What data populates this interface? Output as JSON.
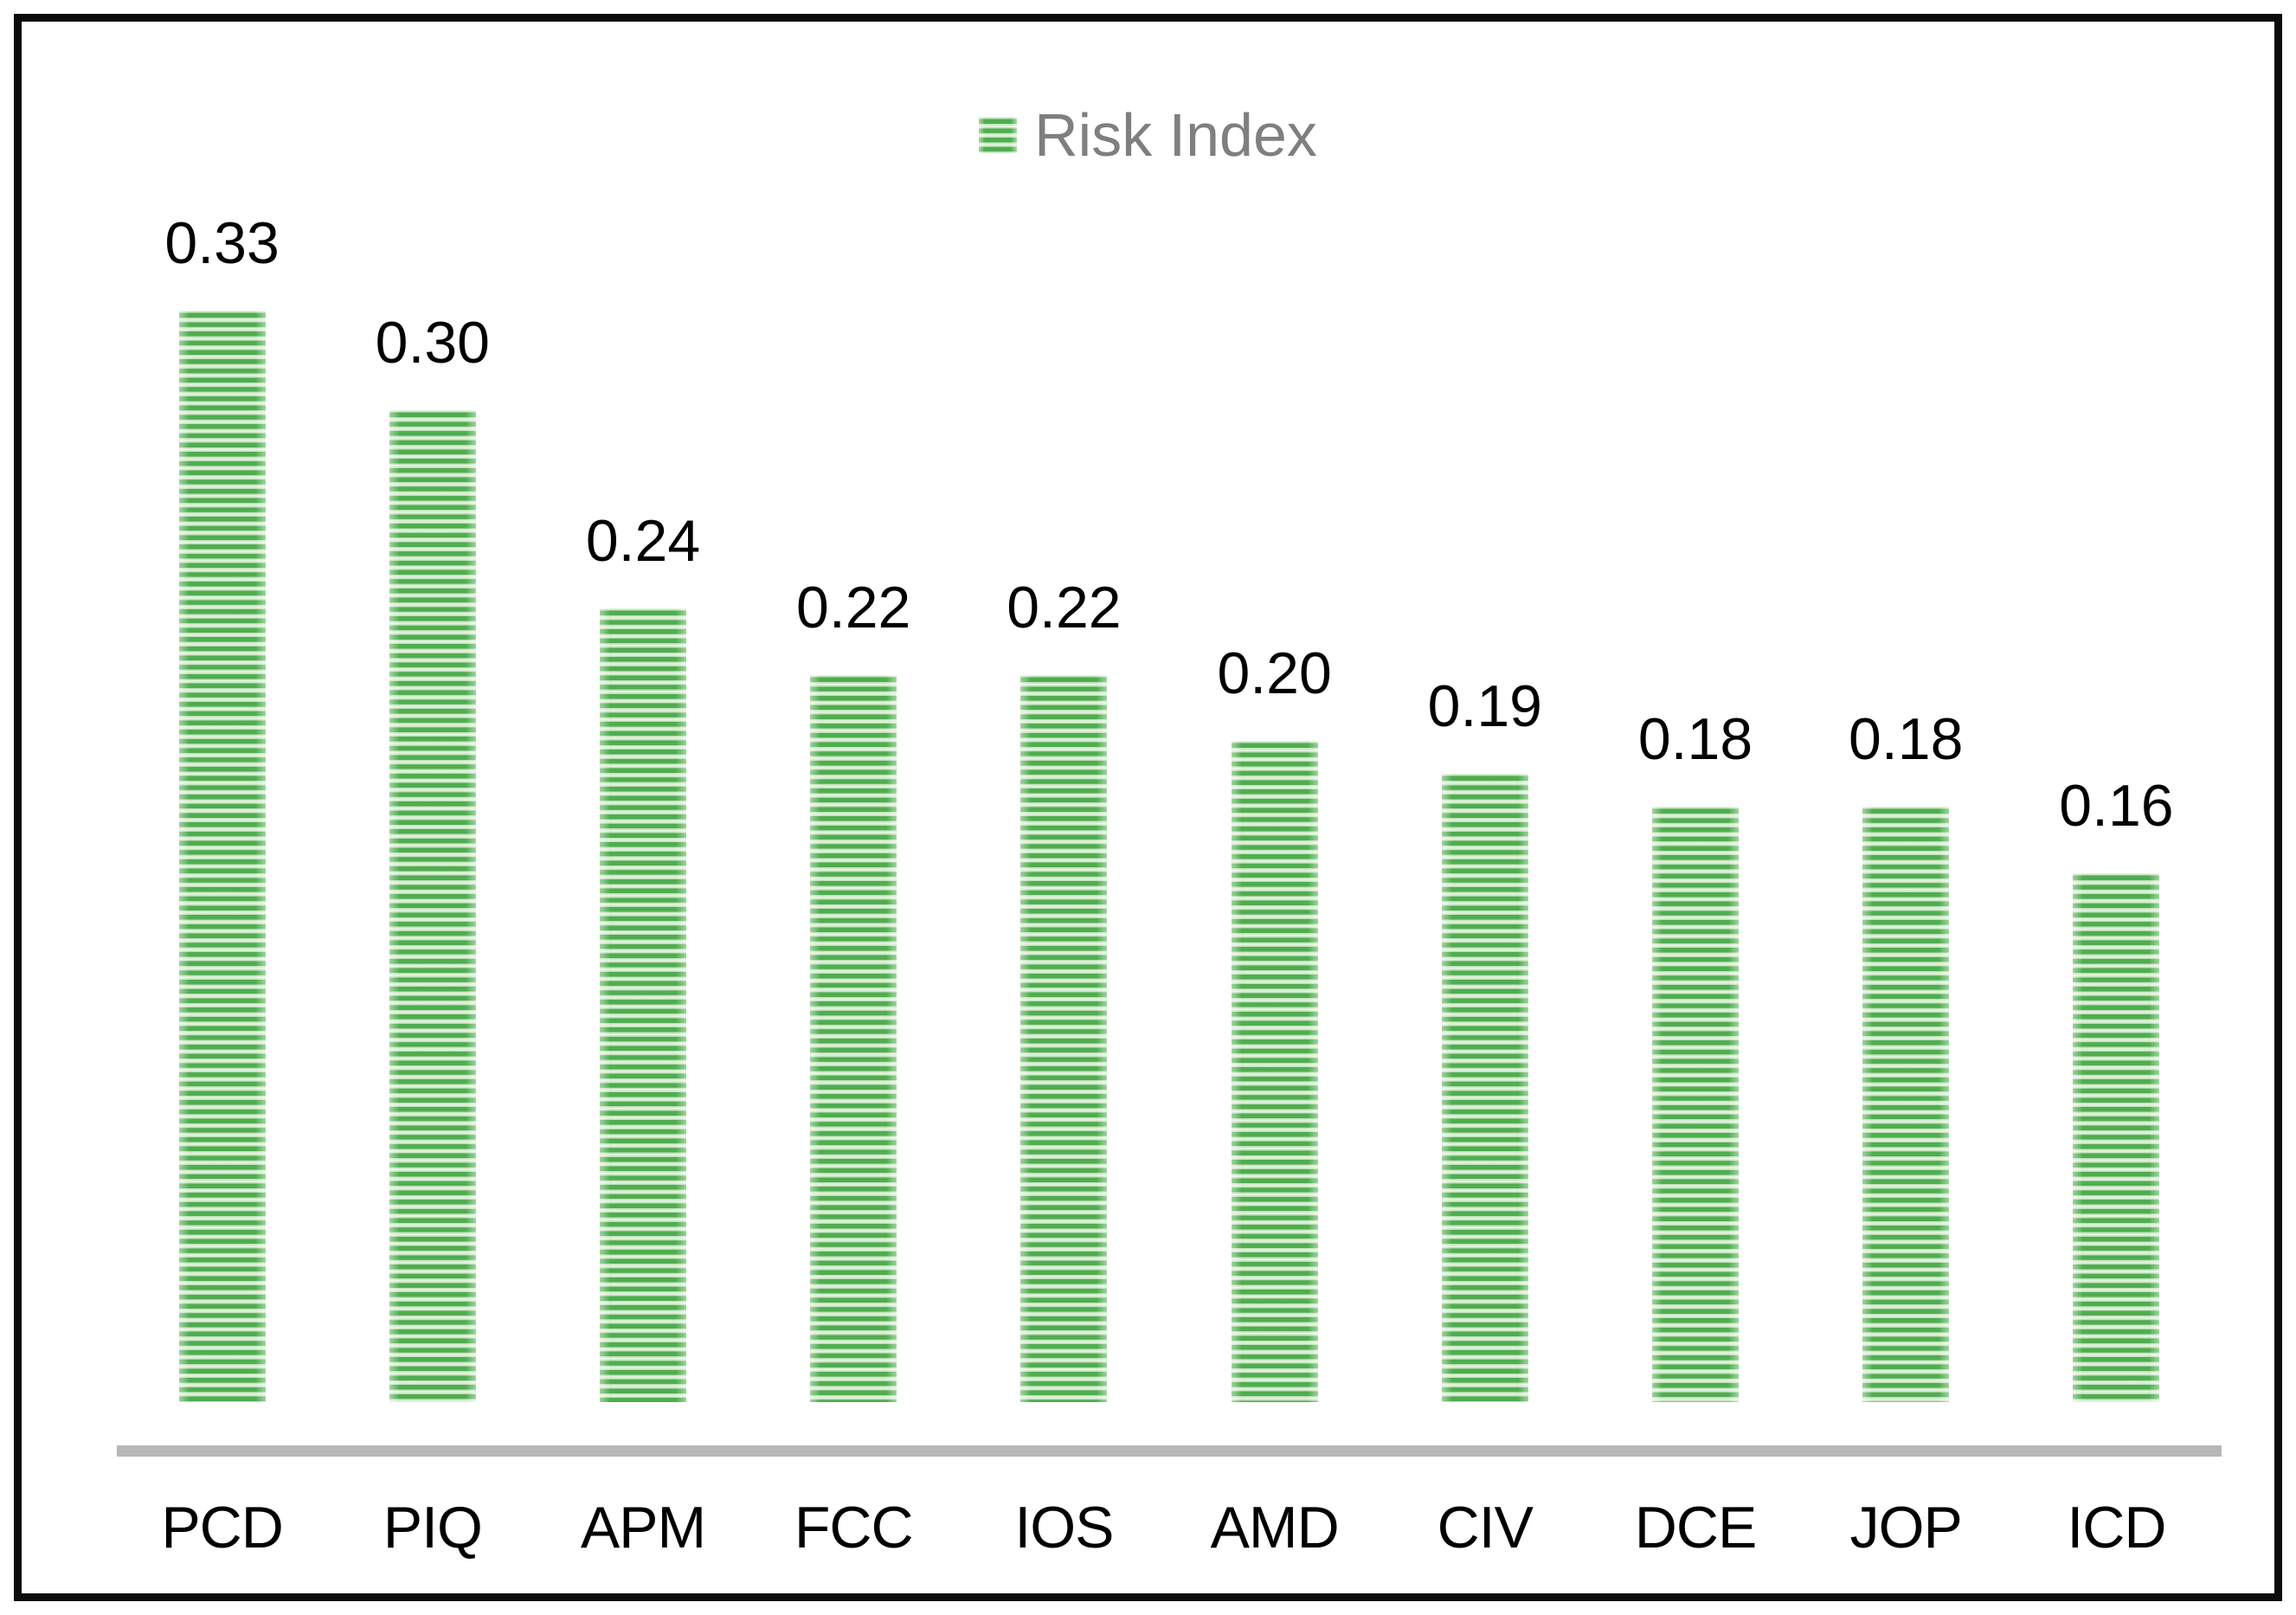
{
  "chart_data": {
    "type": "bar",
    "title": "",
    "xlabel": "",
    "ylabel": "",
    "categories": [
      "PCD",
      "PIQ",
      "APM",
      "FCC",
      "IOS",
      "AMD",
      "CIV",
      "DCE",
      "JOP",
      "ICD"
    ],
    "series": [
      {
        "name": "Risk Index",
        "values": [
          0.33,
          0.3,
          0.24,
          0.22,
          0.22,
          0.2,
          0.19,
          0.18,
          0.18,
          0.16
        ]
      }
    ],
    "data_labels": [
      "0.33",
      "0.30",
      "0.24",
      "0.22",
      "0.22",
      "0.20",
      "0.19",
      "0.18",
      "0.18",
      "0.16"
    ],
    "ylim": [
      0,
      0.345
    ],
    "grid": false,
    "y_axis_visible": false,
    "legend_position": "top-center",
    "bar_fill": "horizontal-green-stripes"
  },
  "legend": {
    "label": "Risk Index"
  },
  "colors": {
    "stripe_dark": "#4fad4f",
    "stripe_light_edge": "#b5dcae",
    "stripe_light_center": "#e9f5e5",
    "axis_line": "#b8b8b8",
    "legend_text": "#7f7f7f",
    "label_text": "#000000",
    "border": "#0b0b0b",
    "background": "#ffffff"
  }
}
